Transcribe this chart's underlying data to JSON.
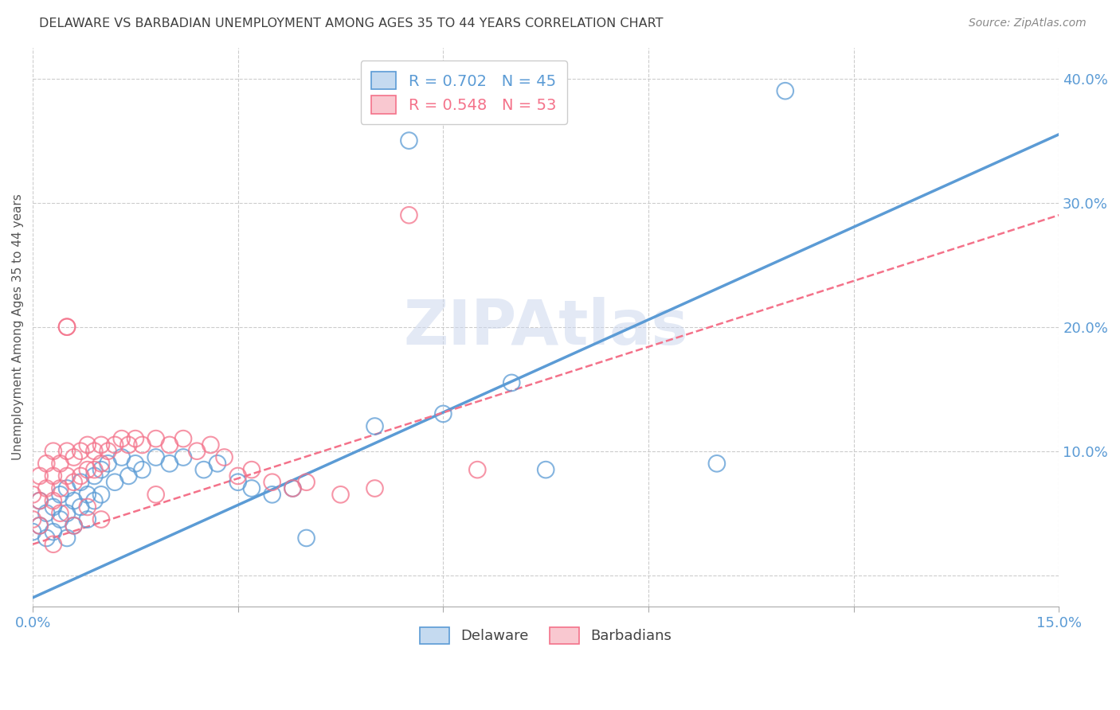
{
  "title": "DELAWARE VS BARBADIAN UNEMPLOYMENT AMONG AGES 35 TO 44 YEARS CORRELATION CHART",
  "source": "Source: ZipAtlas.com",
  "ylabel": "Unemployment Among Ages 35 to 44 years",
  "xlim": [
    0.0,
    0.15
  ],
  "ylim": [
    -0.025,
    0.425
  ],
  "x_ticks": [
    0.0,
    0.03,
    0.06,
    0.09,
    0.12,
    0.15
  ],
  "y_ticks_right": [
    0.0,
    0.1,
    0.2,
    0.3,
    0.4
  ],
  "y_tick_labels_right": [
    "",
    "10.0%",
    "20.0%",
    "30.0%",
    "40.0%"
  ],
  "blue_line": {
    "x0": 0.0,
    "y0": -0.018,
    "x1": 0.15,
    "y1": 0.355
  },
  "pink_line": {
    "x0": 0.0,
    "y0": 0.025,
    "x1": 0.15,
    "y1": 0.29
  },
  "blue_color": "#5b9bd5",
  "pink_color": "#f4728a",
  "axis_color": "#5b9bd5",
  "watermark": "ZIPAtlas",
  "legend_label_blue": "R = 0.702   N = 45",
  "legend_label_pink": "R = 0.548   N = 53",
  "delaware_points": [
    [
      0.001,
      0.04
    ],
    [
      0.001,
      0.06
    ],
    [
      0.002,
      0.05
    ],
    [
      0.002,
      0.03
    ],
    [
      0.003,
      0.055
    ],
    [
      0.003,
      0.035
    ],
    [
      0.004,
      0.065
    ],
    [
      0.004,
      0.045
    ],
    [
      0.005,
      0.07
    ],
    [
      0.005,
      0.05
    ],
    [
      0.005,
      0.03
    ],
    [
      0.006,
      0.06
    ],
    [
      0.006,
      0.04
    ],
    [
      0.007,
      0.075
    ],
    [
      0.007,
      0.055
    ],
    [
      0.008,
      0.065
    ],
    [
      0.008,
      0.045
    ],
    [
      0.009,
      0.08
    ],
    [
      0.009,
      0.06
    ],
    [
      0.01,
      0.085
    ],
    [
      0.01,
      0.065
    ],
    [
      0.011,
      0.09
    ],
    [
      0.012,
      0.075
    ],
    [
      0.013,
      0.095
    ],
    [
      0.014,
      0.08
    ],
    [
      0.015,
      0.09
    ],
    [
      0.016,
      0.085
    ],
    [
      0.018,
      0.095
    ],
    [
      0.02,
      0.09
    ],
    [
      0.022,
      0.095
    ],
    [
      0.025,
      0.085
    ],
    [
      0.027,
      0.09
    ],
    [
      0.03,
      0.075
    ],
    [
      0.032,
      0.07
    ],
    [
      0.035,
      0.065
    ],
    [
      0.038,
      0.07
    ],
    [
      0.04,
      0.03
    ],
    [
      0.05,
      0.12
    ],
    [
      0.055,
      0.35
    ],
    [
      0.06,
      0.13
    ],
    [
      0.07,
      0.155
    ],
    [
      0.075,
      0.085
    ],
    [
      0.1,
      0.09
    ],
    [
      0.11,
      0.39
    ],
    [
      0.0,
      0.035
    ]
  ],
  "barbadian_points": [
    [
      0.0,
      0.045
    ],
    [
      0.0,
      0.065
    ],
    [
      0.001,
      0.06
    ],
    [
      0.001,
      0.04
    ],
    [
      0.001,
      0.08
    ],
    [
      0.002,
      0.07
    ],
    [
      0.002,
      0.09
    ],
    [
      0.003,
      0.08
    ],
    [
      0.003,
      0.1
    ],
    [
      0.003,
      0.06
    ],
    [
      0.004,
      0.09
    ],
    [
      0.004,
      0.07
    ],
    [
      0.005,
      0.1
    ],
    [
      0.005,
      0.08
    ],
    [
      0.005,
      0.2
    ],
    [
      0.006,
      0.095
    ],
    [
      0.006,
      0.075
    ],
    [
      0.007,
      0.1
    ],
    [
      0.007,
      0.08
    ],
    [
      0.008,
      0.105
    ],
    [
      0.008,
      0.085
    ],
    [
      0.009,
      0.1
    ],
    [
      0.009,
      0.085
    ],
    [
      0.01,
      0.105
    ],
    [
      0.01,
      0.09
    ],
    [
      0.011,
      0.1
    ],
    [
      0.012,
      0.105
    ],
    [
      0.013,
      0.11
    ],
    [
      0.014,
      0.105
    ],
    [
      0.015,
      0.11
    ],
    [
      0.016,
      0.105
    ],
    [
      0.018,
      0.11
    ],
    [
      0.02,
      0.105
    ],
    [
      0.022,
      0.11
    ],
    [
      0.024,
      0.1
    ],
    [
      0.026,
      0.105
    ],
    [
      0.028,
      0.095
    ],
    [
      0.03,
      0.08
    ],
    [
      0.032,
      0.085
    ],
    [
      0.035,
      0.075
    ],
    [
      0.038,
      0.07
    ],
    [
      0.04,
      0.075
    ],
    [
      0.045,
      0.065
    ],
    [
      0.05,
      0.07
    ],
    [
      0.055,
      0.29
    ],
    [
      0.065,
      0.085
    ],
    [
      0.003,
      0.025
    ],
    [
      0.004,
      0.05
    ],
    [
      0.006,
      0.04
    ],
    [
      0.008,
      0.055
    ],
    [
      0.01,
      0.045
    ],
    [
      0.018,
      0.065
    ],
    [
      0.005,
      0.2
    ]
  ]
}
